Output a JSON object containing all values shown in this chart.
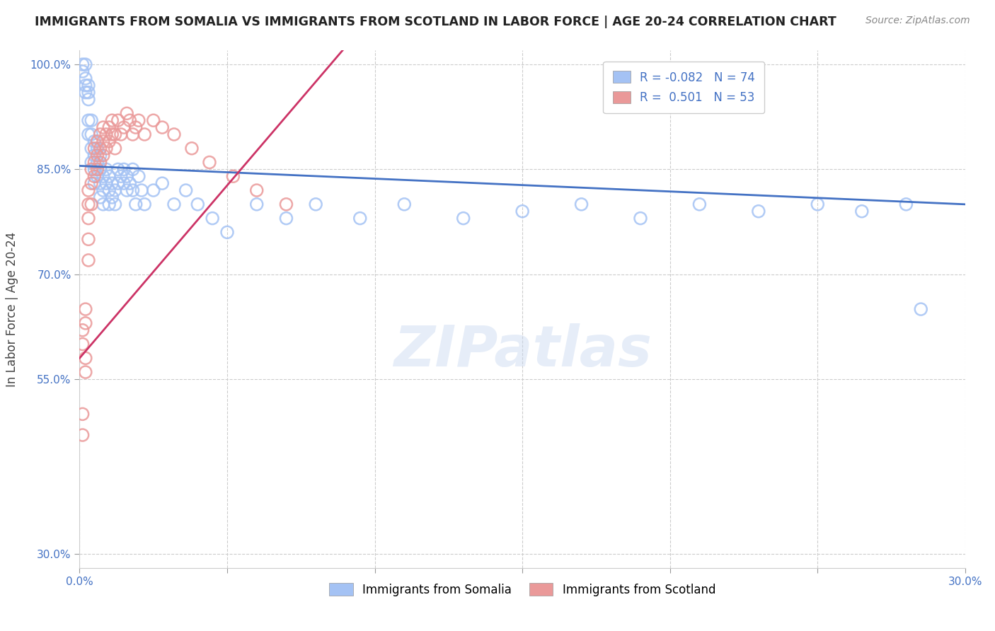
{
  "title": "IMMIGRANTS FROM SOMALIA VS IMMIGRANTS FROM SCOTLAND IN LABOR FORCE | AGE 20-24 CORRELATION CHART",
  "source": "Source: ZipAtlas.com",
  "ylabel": "In Labor Force | Age 20-24",
  "xlim": [
    0.0,
    0.3
  ],
  "ylim": [
    0.28,
    1.02
  ],
  "xticks": [
    0.0,
    0.05,
    0.1,
    0.15,
    0.2,
    0.25,
    0.3
  ],
  "yticks": [
    0.3,
    0.55,
    0.7,
    0.85,
    1.0
  ],
  "ytick_labels": [
    "30.0%",
    "55.0%",
    "70.0%",
    "85.0%",
    "100.0%"
  ],
  "somalia_color": "#a4c2f4",
  "scotland_color": "#ea9999",
  "somalia_R": -0.082,
  "somalia_N": 74,
  "scotland_R": 0.501,
  "scotland_N": 53,
  "somalia_line_color": "#4472c4",
  "scotland_line_color": "#cc3366",
  "watermark": "ZIPatlas",
  "scatter_somalia_x": [
    0.001,
    0.001,
    0.002,
    0.002,
    0.002,
    0.002,
    0.003,
    0.003,
    0.003,
    0.003,
    0.003,
    0.004,
    0.004,
    0.004,
    0.004,
    0.005,
    0.005,
    0.005,
    0.005,
    0.006,
    0.006,
    0.006,
    0.007,
    0.007,
    0.007,
    0.007,
    0.008,
    0.008,
    0.008,
    0.009,
    0.009,
    0.01,
    0.01,
    0.01,
    0.011,
    0.011,
    0.012,
    0.012,
    0.013,
    0.013,
    0.014,
    0.015,
    0.015,
    0.016,
    0.016,
    0.017,
    0.018,
    0.018,
    0.019,
    0.02,
    0.021,
    0.022,
    0.025,
    0.028,
    0.032,
    0.036,
    0.04,
    0.045,
    0.05,
    0.06,
    0.07,
    0.08,
    0.095,
    0.11,
    0.13,
    0.15,
    0.17,
    0.19,
    0.21,
    0.23,
    0.25,
    0.265,
    0.28,
    0.285
  ],
  "scatter_somalia_y": [
    0.99,
    1.0,
    0.98,
    0.97,
    0.96,
    1.0,
    0.92,
    0.95,
    0.97,
    0.96,
    0.9,
    0.88,
    0.86,
    0.9,
    0.92,
    0.87,
    0.85,
    0.83,
    0.89,
    0.88,
    0.86,
    0.84,
    0.87,
    0.85,
    0.83,
    0.81,
    0.84,
    0.82,
    0.8,
    0.85,
    0.83,
    0.84,
    0.82,
    0.8,
    0.83,
    0.81,
    0.82,
    0.8,
    0.85,
    0.83,
    0.84,
    0.85,
    0.83,
    0.84,
    0.82,
    0.83,
    0.85,
    0.82,
    0.8,
    0.84,
    0.82,
    0.8,
    0.82,
    0.83,
    0.8,
    0.82,
    0.8,
    0.78,
    0.76,
    0.8,
    0.78,
    0.8,
    0.78,
    0.8,
    0.78,
    0.79,
    0.8,
    0.78,
    0.8,
    0.79,
    0.8,
    0.79,
    0.8,
    0.65
  ],
  "scatter_scotland_x": [
    0.001,
    0.001,
    0.001,
    0.001,
    0.002,
    0.002,
    0.002,
    0.002,
    0.003,
    0.003,
    0.003,
    0.003,
    0.003,
    0.004,
    0.004,
    0.004,
    0.005,
    0.005,
    0.005,
    0.006,
    0.006,
    0.006,
    0.007,
    0.007,
    0.007,
    0.008,
    0.008,
    0.008,
    0.009,
    0.009,
    0.01,
    0.01,
    0.011,
    0.011,
    0.012,
    0.012,
    0.013,
    0.014,
    0.015,
    0.016,
    0.017,
    0.018,
    0.019,
    0.02,
    0.022,
    0.025,
    0.028,
    0.032,
    0.038,
    0.044,
    0.052,
    0.06,
    0.07
  ],
  "scatter_scotland_y": [
    0.47,
    0.5,
    0.6,
    0.62,
    0.56,
    0.58,
    0.63,
    0.65,
    0.72,
    0.75,
    0.78,
    0.8,
    0.82,
    0.8,
    0.83,
    0.85,
    0.84,
    0.86,
    0.88,
    0.85,
    0.87,
    0.89,
    0.86,
    0.88,
    0.9,
    0.87,
    0.89,
    0.91,
    0.88,
    0.9,
    0.89,
    0.91,
    0.9,
    0.92,
    0.88,
    0.9,
    0.92,
    0.9,
    0.91,
    0.93,
    0.92,
    0.9,
    0.91,
    0.92,
    0.9,
    0.92,
    0.91,
    0.9,
    0.88,
    0.86,
    0.84,
    0.82,
    0.8
  ]
}
